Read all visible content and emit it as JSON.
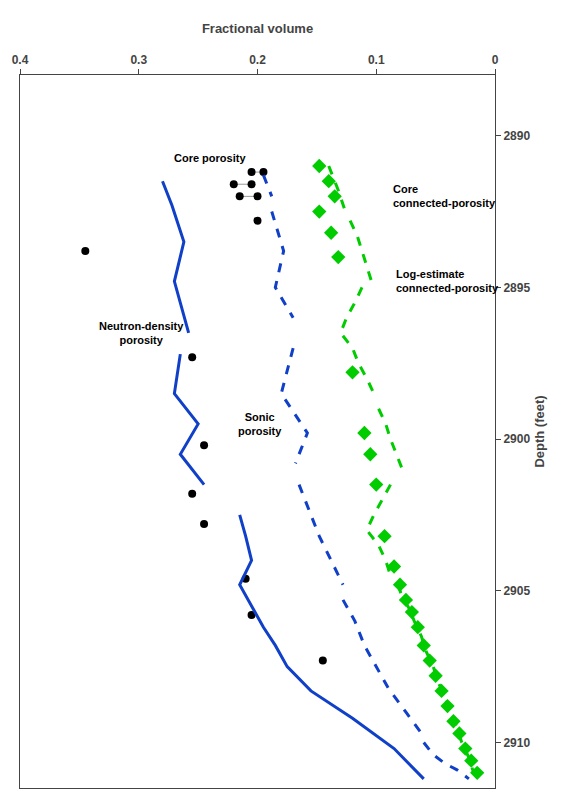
{
  "chart_data": {
    "type": "line",
    "xlabel": "Fractional volume",
    "ylabel": "Depth (feet)",
    "xlim": [
      0.4,
      0.0
    ],
    "ylim": [
      2911.5,
      2888.0
    ],
    "xticks": [
      0.4,
      0.3,
      0.2,
      0.1,
      0.0
    ],
    "yticks": [
      2890,
      2895,
      2900,
      2905,
      2910
    ],
    "grid": false,
    "series": [
      {
        "type": "line",
        "color": "#999999",
        "line_style": "solid",
        "x": [
          0.205,
          0.195,
          null,
          0.215,
          0.2,
          null,
          0.22,
          0.205
        ],
        "values": [
          2891.2,
          2891.2,
          null,
          2892.0,
          2892.0,
          null,
          2891.6,
          2891.6
        ]
      },
      {
        "type": "scatter",
        "color": "#000000",
        "marker": "circle",
        "x": [
          0.205,
          0.195,
          0.215,
          0.2,
          0.22,
          0.205,
          0.2,
          0.345,
          0.255,
          0.245,
          0.255,
          0.245,
          0.21,
          0.205,
          0.145
        ],
        "values": [
          2891.2,
          2891.2,
          2892.0,
          2892.0,
          2891.6,
          2891.6,
          2892.8,
          2893.8,
          2897.3,
          2900.2,
          2901.8,
          2902.8,
          2904.6,
          2905.8,
          2907.3
        ]
      },
      {
        "type": "line",
        "color": "#1040c8",
        "line_style": "solid",
        "x": [
          0.28,
          0.272,
          0.262,
          0.27,
          0.258,
          null,
          0.265,
          0.27,
          0.25,
          0.265,
          0.245,
          null,
          0.215,
          0.21,
          0.205,
          0.215,
          0.205,
          0.195,
          0.185,
          0.175,
          0.155,
          0.12,
          0.085,
          0.06
        ],
        "values": [
          2891.5,
          2892.3,
          2893.5,
          2894.8,
          2896.5,
          null,
          2897.2,
          2898.5,
          2899.5,
          2900.5,
          2901.5,
          null,
          2902.5,
          2903.2,
          2904.0,
          2904.8,
          2905.5,
          2906.2,
          2906.8,
          2907.5,
          2908.3,
          2909.2,
          2910.2,
          2911.2
        ]
      },
      {
        "type": "line",
        "color": "#1040c8",
        "line_style": "dashed",
        "x": [
          0.195,
          0.188,
          null,
          0.188,
          0.178,
          0.185,
          0.17,
          null,
          0.17,
          0.18,
          0.158,
          0.168,
          null,
          0.165,
          0.158,
          0.148,
          0.138,
          0.128,
          null,
          0.128,
          0.118,
          0.11,
          0.1,
          0.09,
          0.075,
          0.06,
          null,
          0.06,
          0.052,
          0.042,
          0.032,
          0.022
        ],
        "values": [
          2891.3,
          2892.0,
          null,
          2892.5,
          2893.8,
          2895.0,
          2896.0,
          null,
          2897.0,
          2898.5,
          2899.8,
          2900.8,
          null,
          2901.5,
          2902.2,
          2903.2,
          2904.0,
          2904.8,
          null,
          2905.3,
          2906.0,
          2906.8,
          2907.5,
          2908.2,
          2909.0,
          2909.8,
          null,
          2910.0,
          2910.4,
          2910.7,
          2910.9,
          2911.2
        ]
      },
      {
        "type": "scatter",
        "color": "#00cc00",
        "marker": "diamond",
        "x": [
          0.148,
          0.14,
          0.135,
          0.148,
          0.138,
          0.132,
          0.12,
          0.11,
          0.105,
          0.1,
          0.093,
          0.085,
          0.08,
          0.075,
          0.07,
          0.065,
          0.06,
          0.055,
          0.05,
          0.045,
          0.04,
          0.035,
          0.03,
          0.025,
          0.02,
          0.015
        ],
        "values": [
          2891.0,
          2891.5,
          2892.0,
          2892.5,
          2893.2,
          2894.0,
          2897.8,
          2899.8,
          2900.5,
          2901.5,
          2903.2,
          2904.2,
          2904.8,
          2905.3,
          2905.7,
          2906.2,
          2906.8,
          2907.3,
          2907.8,
          2908.3,
          2908.8,
          2909.3,
          2909.7,
          2910.2,
          2910.6,
          2911.0
        ]
      },
      {
        "type": "line",
        "color": "#00cc00",
        "line_style": "dashed",
        "x": [
          0.14,
          0.132,
          0.126,
          null,
          0.122,
          0.116,
          0.112,
          0.108,
          0.104,
          null,
          0.112,
          0.118,
          0.125,
          0.13,
          0.12,
          0.115,
          0.108,
          0.102,
          null,
          0.098,
          0.092,
          0.088,
          0.083,
          0.078,
          null,
          0.088,
          0.095,
          0.102,
          0.108,
          0.098,
          0.092,
          0.088,
          null,
          0.082,
          0.078,
          0.072,
          0.068,
          0.062,
          0.058,
          0.052,
          0.048,
          0.042,
          0.038,
          0.032,
          0.028,
          0.022,
          0.018
        ],
        "values": [
          2891.0,
          2891.8,
          2892.5,
          null,
          2892.8,
          2893.3,
          2893.8,
          2894.3,
          2894.8,
          null,
          2895.0,
          2895.5,
          2896.0,
          2896.5,
          2897.0,
          2897.5,
          2898.0,
          2898.5,
          null,
          2899.0,
          2899.5,
          2900.0,
          2900.5,
          2901.0,
          null,
          2901.5,
          2902.0,
          2902.5,
          2903.0,
          2903.5,
          2904.0,
          2904.5,
          null,
          2904.8,
          2905.2,
          2905.6,
          2906.0,
          2906.5,
          2907.0,
          2907.5,
          2908.0,
          2908.5,
          2909.0,
          2909.5,
          2910.0,
          2910.5,
          2911.0
        ]
      }
    ],
    "annotations": [
      {
        "text": "Core porosity",
        "x": 0.24,
        "y": 2891.0
      },
      {
        "text": "Neutron-density\nporosity",
        "x": 0.298,
        "y": 2896.5
      },
      {
        "text": "Sonic\nporosity",
        "x": 0.198,
        "y": 2899.5
      },
      {
        "text": "Core\nconnected-porosity",
        "x": 0.088,
        "y": 2892.0
      },
      {
        "text": "Log-estimate\nconnected-porosity",
        "x": 0.085,
        "y": 2894.8
      }
    ]
  }
}
